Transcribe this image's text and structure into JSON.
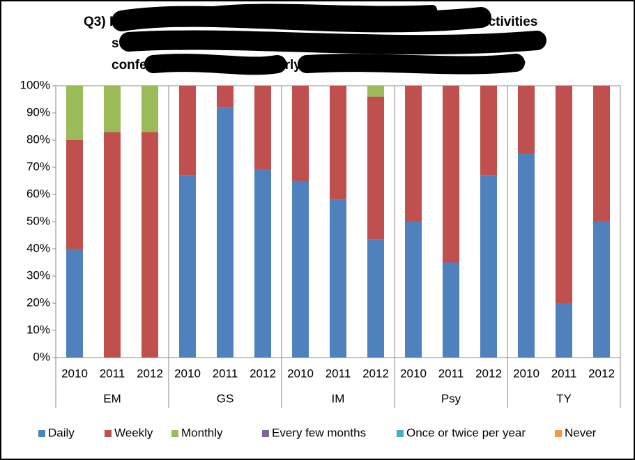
{
  "chart_data": {
    "type": "stacked_bar",
    "title_fragments": [
      "Q3) H",
      "activities",
      "su",
      "confer",
      "arly",
      "?"
    ],
    "categories": [
      "2010",
      "2011",
      "2012",
      "2010",
      "2011",
      "2012",
      "2010",
      "2011",
      "2012",
      "2010",
      "2011",
      "2012",
      "2010",
      "2011",
      "2012"
    ],
    "groups": [
      "EM",
      "GS",
      "IM",
      "Psy",
      "TY"
    ],
    "series": [
      {
        "name": "Daily",
        "color": "#4f81bd",
        "values": [
          40,
          0,
          0,
          67,
          92,
          69,
          65,
          58,
          43.5,
          50,
          35,
          67,
          75,
          20,
          50
        ]
      },
      {
        "name": "Weekly",
        "color": "#c0504d",
        "values": [
          40,
          83,
          83,
          33,
          8,
          31,
          35,
          42,
          52.5,
          50,
          65,
          33,
          25,
          80,
          50
        ]
      },
      {
        "name": "Monthly",
        "color": "#9bbb59",
        "values": [
          20,
          17,
          17,
          0,
          0,
          0,
          0,
          0,
          4,
          0,
          0,
          0,
          0,
          0,
          0
        ]
      },
      {
        "name": "Every few months",
        "color": "#8064a2",
        "values": [
          0,
          0,
          0,
          0,
          0,
          0,
          0,
          0,
          0,
          0,
          0,
          0,
          0,
          0,
          0
        ]
      },
      {
        "name": "Once or twice per year",
        "color": "#4bacc6",
        "values": [
          0,
          0,
          0,
          0,
          0,
          0,
          0,
          0,
          0,
          0,
          0,
          0,
          0,
          0,
          0
        ]
      },
      {
        "name": "Never",
        "color": "#f79646",
        "values": [
          0,
          0,
          0,
          0,
          0,
          0,
          0,
          0,
          0,
          0,
          0,
          0,
          0,
          0,
          0
        ]
      }
    ],
    "ylim": [
      0,
      100
    ],
    "yticks": [
      {
        "value": 0,
        "label": "0%"
      },
      {
        "value": 10,
        "label": "10%"
      },
      {
        "value": 20,
        "label": "20%"
      },
      {
        "value": 30,
        "label": "30%"
      },
      {
        "value": 40,
        "label": "40%"
      },
      {
        "value": 50,
        "label": "50%"
      },
      {
        "value": 60,
        "label": "60%"
      },
      {
        "value": 70,
        "label": "70%"
      },
      {
        "value": 80,
        "label": "80%"
      },
      {
        "value": 90,
        "label": "90%"
      },
      {
        "value": 100,
        "label": "100%"
      }
    ],
    "legend": "bottom"
  }
}
